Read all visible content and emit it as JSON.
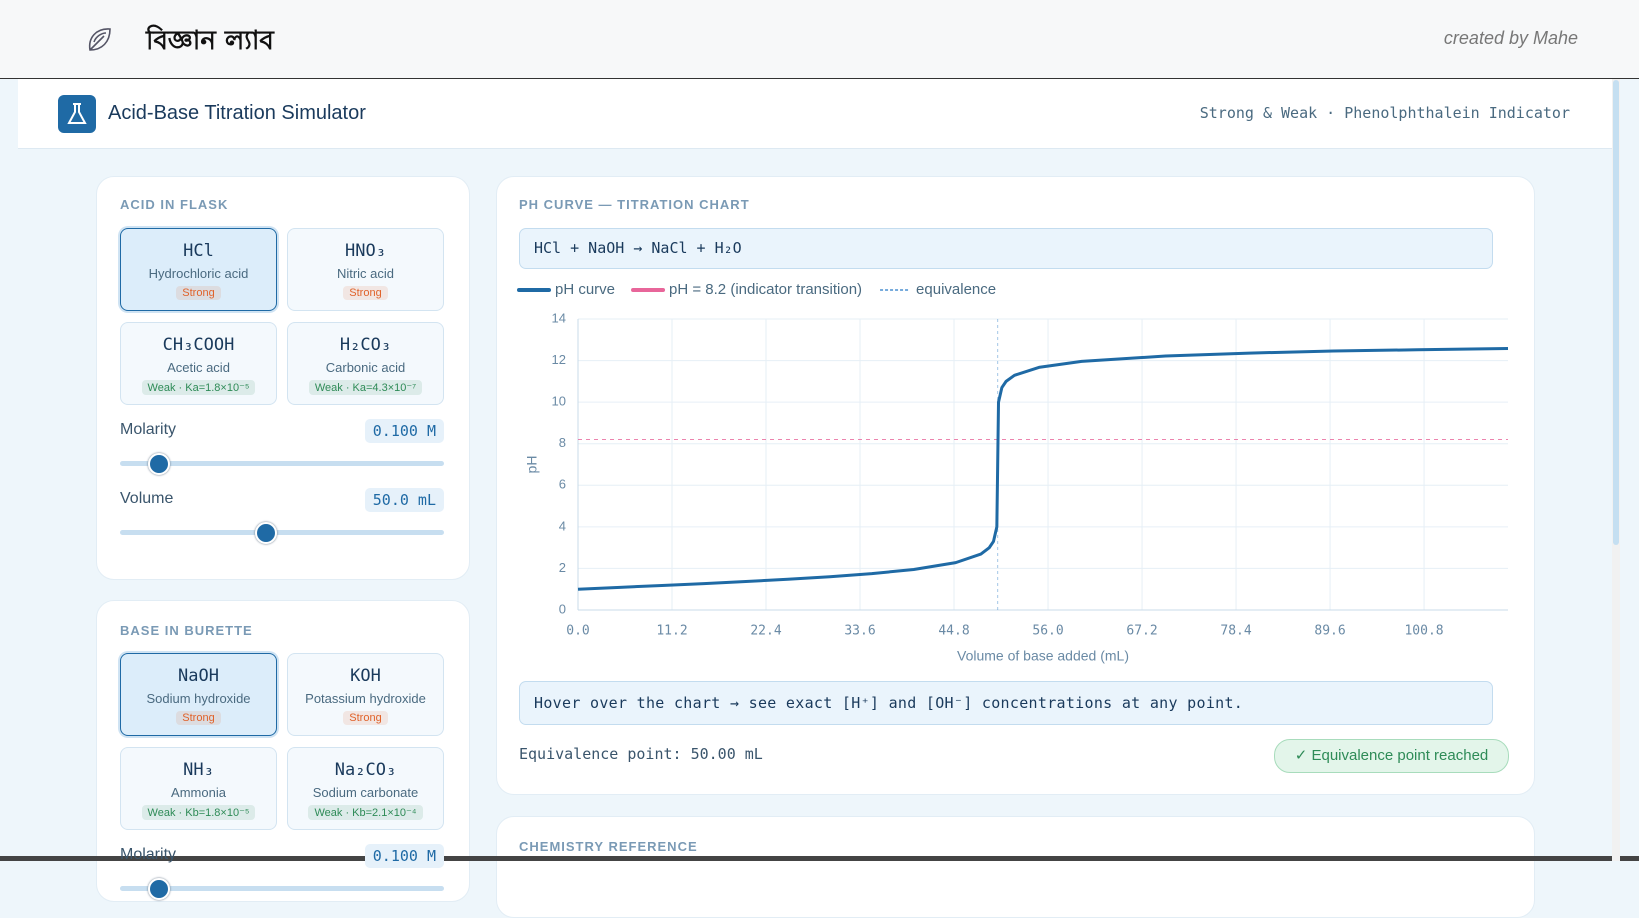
{
  "header": {
    "brand": "বিজ্ঞান ল্যাব",
    "credit": "created by Mahe"
  },
  "app": {
    "title": "Acid-Base Titration Simulator",
    "subtitle": "Strong & Weak · Phenolphthalein Indicator"
  },
  "acid": {
    "heading": "ACID IN FLASK",
    "options": [
      {
        "formula": "HCl",
        "name": "Hydrochloric acid",
        "badge": "Strong",
        "badge_color": "#e0622a",
        "selected": true
      },
      {
        "formula": "HNO₃",
        "name": "Nitric acid",
        "badge": "Strong",
        "badge_color": "#e0622a",
        "selected": false
      },
      {
        "formula": "CH₃COOH",
        "name": "Acetic acid",
        "badge": "Weak · Ka=1.8×10⁻⁵",
        "badge_color": "#2e8b57",
        "selected": false
      },
      {
        "formula": "H₂CO₃",
        "name": "Carbonic acid",
        "badge": "Weak · Ka=4.3×10⁻⁷",
        "badge_color": "#2e8b57",
        "selected": false
      }
    ],
    "controls": [
      {
        "label": "Molarity",
        "value": "0.100 M"
      },
      {
        "label": "Volume",
        "value": "50.0 mL"
      }
    ]
  },
  "base": {
    "heading": "BASE IN BURETTE",
    "options": [
      {
        "formula": "NaOH",
        "name": "Sodium hydroxide",
        "badge": "Strong",
        "badge_color": "#e0622a",
        "selected": true
      },
      {
        "formula": "KOH",
        "name": "Potassium hydroxide",
        "badge": "Strong",
        "badge_color": "#e0622a",
        "selected": false
      },
      {
        "formula": "NH₃",
        "name": "Ammonia",
        "badge": "Weak · Kb=1.8×10⁻⁵",
        "badge_color": "#2e8b57",
        "selected": false
      },
      {
        "formula": "Na₂CO₃",
        "name": "Sodium carbonate",
        "badge": "Weak · Kb=2.1×10⁻⁴",
        "badge_color": "#2e8b57",
        "selected": false
      }
    ],
    "controls": [
      {
        "label": "Molarity",
        "value": "0.100 M"
      }
    ]
  },
  "chart_data": {
    "type": "line",
    "title": "PH CURVE — TITRATION CHART",
    "equation": "HCl + NaOH → NaCl + H₂O",
    "x_label": "Volume of base added (mL)",
    "y_label": "pH",
    "x": [
      0,
      5,
      10,
      15,
      20,
      25,
      30,
      35,
      40,
      45,
      48,
      49,
      49.5,
      49.9,
      50,
      50.1,
      50.5,
      51,
      52,
      55,
      60,
      70,
      80,
      90,
      100,
      110.8
    ],
    "series": [
      {
        "name": "pH curve",
        "color": "#1f6aa5",
        "values": [
          1.0,
          1.09,
          1.18,
          1.27,
          1.37,
          1.48,
          1.6,
          1.75,
          1.95,
          2.28,
          2.69,
          3.0,
          3.3,
          4.0,
          7.0,
          10.0,
          10.7,
          11.0,
          11.29,
          11.68,
          11.96,
          12.22,
          12.36,
          12.46,
          12.52,
          12.58
        ]
      }
    ],
    "reference_lines": [
      {
        "name": "pH = 8.2 (indicator transition)",
        "axis": "y",
        "value": 8.2,
        "color": "#e8669a"
      },
      {
        "name": "equivalence",
        "axis": "x",
        "value": 50,
        "color": "#4a8fd0"
      }
    ],
    "xlim": [
      0,
      110.8
    ],
    "ylim": [
      0,
      14
    ],
    "xticks": [
      {
        "value": 0,
        "label": "0.0"
      },
      {
        "value": 11.2,
        "label": "11.2"
      },
      {
        "value": 22.4,
        "label": "22.4"
      },
      {
        "value": 33.6,
        "label": "33.6"
      },
      {
        "value": 44.8,
        "label": "44.8"
      },
      {
        "value": 56,
        "label": "56.0"
      },
      {
        "value": 67.2,
        "label": "67.2"
      },
      {
        "value": 78.4,
        "label": "78.4"
      },
      {
        "value": 89.6,
        "label": "89.6"
      },
      {
        "value": 100.8,
        "label": "100.8"
      }
    ],
    "yticks": [
      0,
      2,
      4,
      6,
      8,
      10,
      12,
      14
    ],
    "grid": true,
    "hint": "Hover over the chart → see exact [H⁺] and [OH⁻] concentrations at any point.",
    "equivalence_text": "Equivalence point: 50.00 mL",
    "status": "✓ Equivalence point reached"
  },
  "reference": {
    "heading": "CHEMISTRY REFERENCE"
  }
}
